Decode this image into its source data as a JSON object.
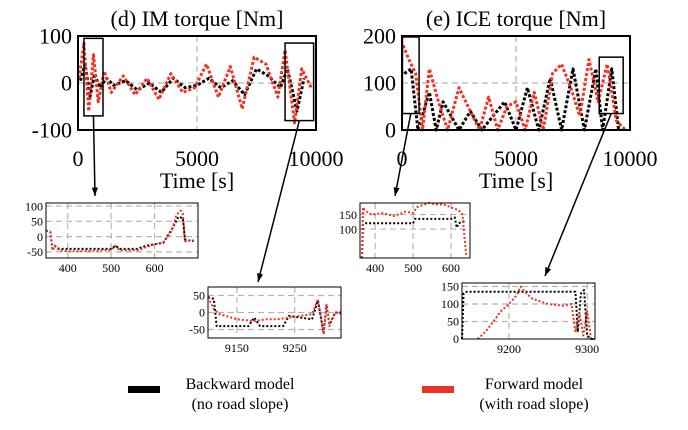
{
  "colors": {
    "backward": "#000000",
    "forward": "#ee3322",
    "grid": "#b5b5b5"
  },
  "legend": {
    "backward_line1": "Backward model",
    "backward_line2": "(no road slope)",
    "forward_line1": "Forward model",
    "forward_line2": "(with road slope)"
  },
  "chart_data": [
    {
      "id": "im_main",
      "type": "line",
      "title": "(d) IM torque [Nm]",
      "xlabel": "Time [s]",
      "xlim": [
        0,
        10000
      ],
      "ylim": [
        -100,
        100
      ],
      "xticks": [
        0,
        5000,
        10000
      ],
      "yticks": [
        -100,
        0,
        100
      ],
      "grid": true,
      "series": [
        {
          "name": "Backward model (no road slope)",
          "color": "#000000",
          "x": [
            100,
            300,
            500,
            700,
            900,
            1200,
            1500,
            2000,
            2500,
            3000,
            3500,
            4000,
            4500,
            5000,
            5500,
            6000,
            6500,
            7000,
            7500,
            8000,
            8500,
            8800,
            9200,
            9500
          ],
          "values": [
            5,
            40,
            -30,
            20,
            -10,
            10,
            -5,
            5,
            -15,
            0,
            -20,
            10,
            -10,
            -5,
            10,
            -10,
            5,
            -25,
            30,
            15,
            -10,
            30,
            -60,
            10
          ]
        },
        {
          "name": "Forward model (with road slope)",
          "color": "#ee3322",
          "x": [
            50,
            250,
            450,
            650,
            850,
            1100,
            1400,
            1900,
            2400,
            2900,
            3400,
            3900,
            4400,
            4900,
            5400,
            5900,
            6400,
            6900,
            7400,
            7900,
            8400,
            8700,
            9100,
            9400,
            9800
          ],
          "values": [
            10,
            85,
            -60,
            60,
            -40,
            25,
            -20,
            15,
            -25,
            10,
            -35,
            20,
            -20,
            -10,
            40,
            -30,
            35,
            -55,
            55,
            40,
            -30,
            70,
            -85,
            30,
            -10
          ]
        }
      ],
      "annotations": [
        "inset-box at 250-1050 s",
        "inset-box at 8700-9900 s"
      ]
    },
    {
      "id": "ice_main",
      "type": "line",
      "title": "(e) ICE torque [Nm]",
      "xlabel": "Time [s]",
      "xlim": [
        0,
        10000
      ],
      "ylim": [
        0,
        200
      ],
      "xticks": [
        0,
        5000,
        10000
      ],
      "yticks": [
        0,
        100,
        200
      ],
      "grid": true,
      "series": [
        {
          "name": "Backward model (no road slope)",
          "color": "#000000",
          "x": [
            100,
            400,
            700,
            1200,
            1500,
            1800,
            2500,
            3000,
            3500,
            4500,
            5000,
            5500,
            6000,
            6500,
            7000,
            7500,
            8000,
            8500,
            8800,
            9200,
            9500
          ],
          "values": [
            120,
            130,
            0,
            80,
            0,
            60,
            0,
            40,
            0,
            60,
            0,
            90,
            0,
            110,
            0,
            130,
            0,
            130,
            0,
            130,
            0
          ]
        },
        {
          "name": "Forward model (with road slope)",
          "color": "#ee3322",
          "x": [
            50,
            300,
            600,
            900,
            1200,
            1600,
            2000,
            2500,
            3000,
            3400,
            3800,
            4200,
            4600,
            5000,
            5400,
            5800,
            6200,
            6600,
            7000,
            7400,
            7800,
            8200,
            8600,
            9000,
            9400,
            9800
          ],
          "values": [
            180,
            150,
            120,
            0,
            130,
            60,
            0,
            90,
            40,
            0,
            70,
            0,
            50,
            60,
            0,
            80,
            0,
            120,
            140,
            90,
            30,
            150,
            60,
            140,
            20,
            0
          ]
        }
      ],
      "annotations": [
        "inset-box at 20-750 s",
        "inset-box at 8650-9700 s"
      ]
    },
    {
      "id": "im_zoom1",
      "type": "line",
      "xlim": [
        350,
        700
      ],
      "ylim": [
        -70,
        110
      ],
      "xticks": [
        400,
        500,
        600
      ],
      "yticks": [
        -50,
        0,
        50,
        100
      ],
      "grid": true,
      "series": [
        {
          "name": "Backward model (no road slope)",
          "color": "#000000",
          "x": [
            350,
            360,
            365,
            370,
            380,
            400,
            450,
            500,
            510,
            520,
            560,
            580,
            600,
            620,
            640,
            655,
            665,
            670,
            690
          ],
          "values": [
            20,
            15,
            -45,
            -30,
            -40,
            -40,
            -40,
            -40,
            -30,
            -40,
            -40,
            -30,
            -25,
            -20,
            25,
            65,
            60,
            -10,
            -15
          ]
        },
        {
          "name": "Forward model (with road slope)",
          "color": "#ee3322",
          "x": [
            350,
            360,
            365,
            370,
            380,
            400,
            450,
            500,
            510,
            520,
            560,
            580,
            600,
            620,
            640,
            650,
            660,
            665,
            670,
            690
          ],
          "values": [
            20,
            15,
            -45,
            -30,
            -45,
            -48,
            -47,
            -44,
            -30,
            -45,
            -45,
            -35,
            -25,
            -20,
            20,
            70,
            85,
            75,
            -15,
            -10
          ]
        }
      ]
    },
    {
      "id": "ice_zoom1",
      "type": "line",
      "xlim": [
        360,
        650
      ],
      "ylim": [
        0,
        190
      ],
      "xticks": [
        400,
        500,
        600
      ],
      "yticks": [
        100,
        150
      ],
      "grid": true,
      "series": [
        {
          "name": "Backward model (no road slope)",
          "color": "#000000",
          "x": [
            365,
            368,
            372,
            400,
            450,
            500,
            505,
            560,
            600,
            610,
            615,
            620,
            640
          ],
          "values": [
            0,
            115,
            120,
            120,
            120,
            120,
            135,
            135,
            135,
            140,
            105,
            120,
            130
          ]
        },
        {
          "name": "Forward model (with road slope)",
          "color": "#ee3322",
          "x": [
            365,
            368,
            372,
            390,
            420,
            450,
            480,
            500,
            510,
            540,
            560,
            580,
            600,
            620,
            630,
            640
          ],
          "values": [
            0,
            175,
            165,
            150,
            155,
            145,
            160,
            155,
            175,
            190,
            185,
            185,
            175,
            165,
            150,
            10
          ]
        }
      ]
    },
    {
      "id": "im_zoom2",
      "type": "line",
      "xlim": [
        9100,
        9330
      ],
      "ylim": [
        -75,
        75
      ],
      "xticks": [
        9150,
        9250
      ],
      "yticks": [
        -50,
        0,
        50
      ],
      "grid": true,
      "series": [
        {
          "name": "Backward model (no road slope)",
          "color": "#000000",
          "x": [
            9100,
            9110,
            9115,
            9130,
            9170,
            9180,
            9190,
            9230,
            9240,
            9260,
            9280,
            9290,
            9300,
            9305,
            9310,
            9320,
            9330
          ],
          "values": [
            45,
            40,
            -40,
            -40,
            -40,
            -15,
            -40,
            -40,
            -10,
            -15,
            -20,
            35,
            -60,
            20,
            -35,
            0,
            0
          ]
        },
        {
          "name": "Forward model (with road slope)",
          "color": "#ee3322",
          "x": [
            9100,
            9110,
            9120,
            9150,
            9180,
            9200,
            9220,
            9240,
            9260,
            9280,
            9290,
            9300,
            9305,
            9310,
            9320,
            9330
          ],
          "values": [
            45,
            10,
            -5,
            -20,
            -25,
            -20,
            -20,
            -15,
            -10,
            -5,
            40,
            -65,
            25,
            -40,
            0,
            -5
          ]
        }
      ]
    },
    {
      "id": "ice_zoom2",
      "type": "line",
      "xlim": [
        9140,
        9310
      ],
      "ylim": [
        0,
        160
      ],
      "xticks": [
        9200,
        9300
      ],
      "yticks": [
        0,
        50,
        100,
        150
      ],
      "grid": true,
      "series": [
        {
          "name": "Backward model (no road slope)",
          "color": "#000000",
          "x": [
            9140,
            9142,
            9146,
            9170,
            9200,
            9220,
            9250,
            9270,
            9280,
            9285,
            9288,
            9292,
            9296,
            9300,
            9305,
            9310
          ],
          "values": [
            0,
            130,
            135,
            135,
            135,
            135,
            135,
            135,
            135,
            135,
            20,
            130,
            140,
            10,
            0,
            0
          ]
        },
        {
          "name": "Forward model (with road slope)",
          "color": "#ee3322",
          "x": [
            9160,
            9170,
            9180,
            9190,
            9200,
            9210,
            9215,
            9220,
            9230,
            9250,
            9270,
            9280,
            9285,
            9290,
            9295,
            9300,
            9305,
            9310
          ],
          "values": [
            0,
            20,
            50,
            80,
            100,
            125,
            150,
            135,
            115,
            100,
            95,
            100,
            20,
            75,
            10,
            80,
            0,
            0
          ]
        }
      ]
    }
  ]
}
